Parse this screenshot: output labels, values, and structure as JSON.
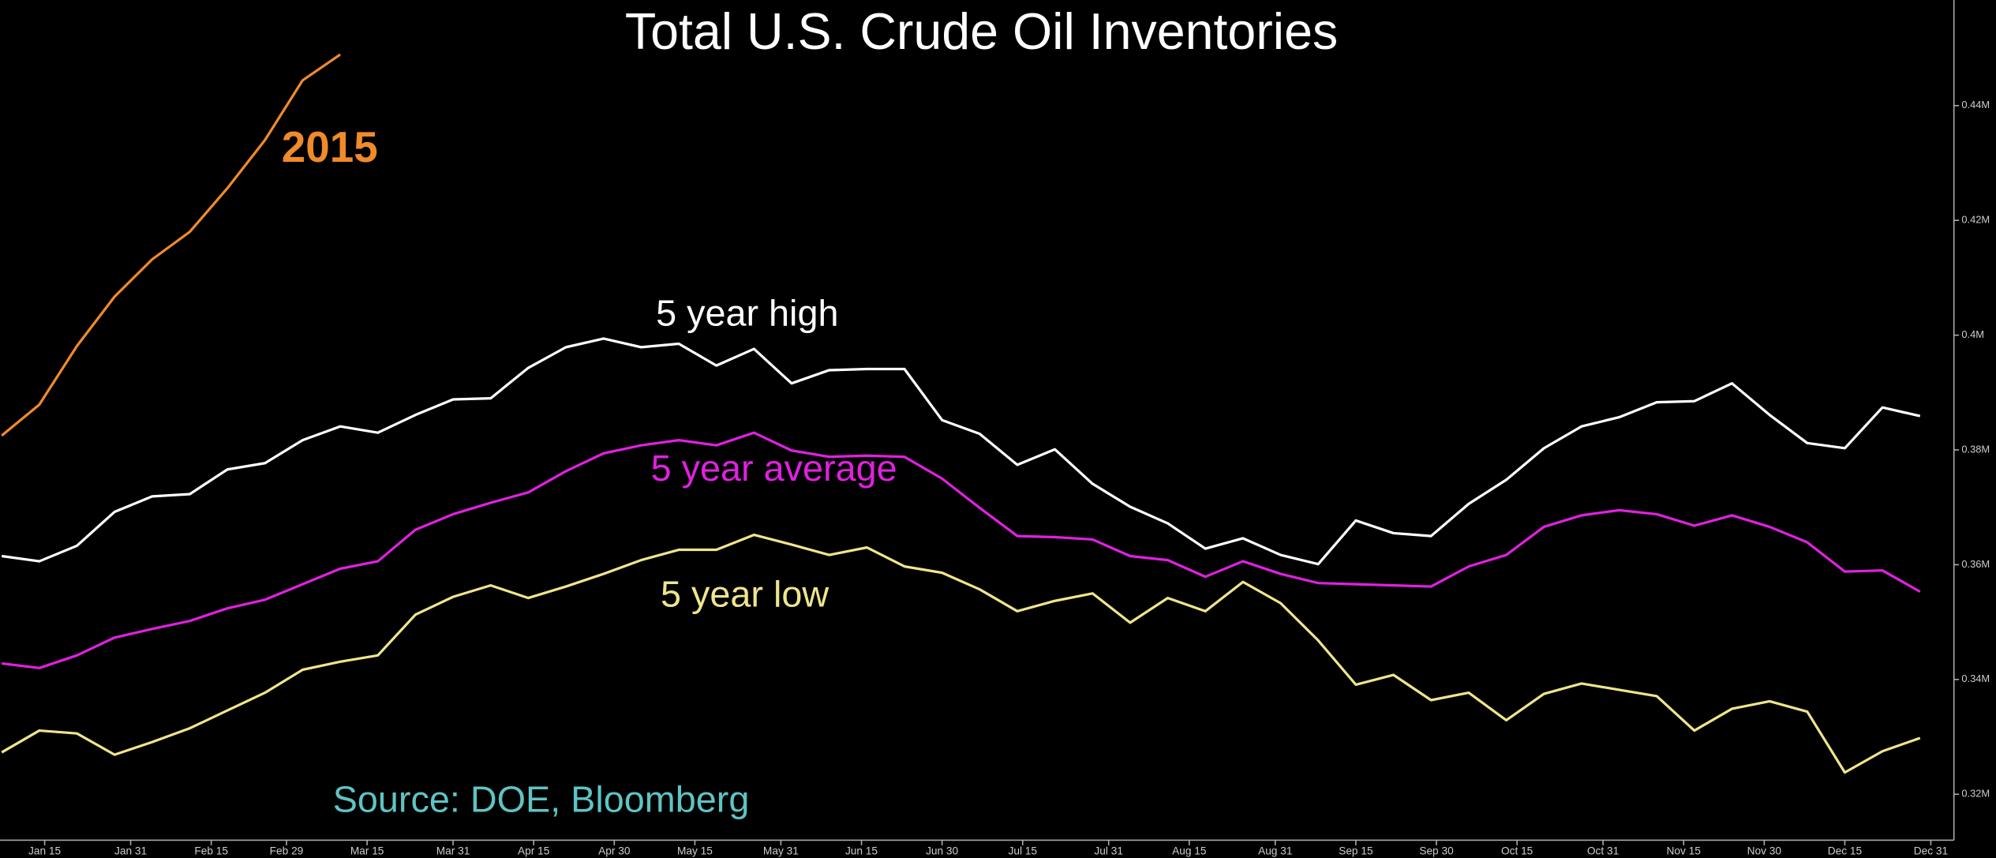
{
  "chart_data": {
    "type": "line",
    "title": "Total U.S. Crude Oil Inventories",
    "source": "Source: DOE, Bloomberg",
    "xlim": [
      6.7,
      370.3
    ],
    "xticks": [
      {
        "value": 15,
        "label": "Jan 15"
      },
      {
        "value": 31,
        "label": "Jan 31"
      },
      {
        "value": 46,
        "label": "Feb 15"
      },
      {
        "value": 60,
        "label": "Feb 29"
      },
      {
        "value": 75,
        "label": "Mar 15"
      },
      {
        "value": 91,
        "label": "Mar 31"
      },
      {
        "value": 106,
        "label": "Apr 15"
      },
      {
        "value": 121,
        "label": "Apr 30"
      },
      {
        "value": 136,
        "label": "May 15"
      },
      {
        "value": 152,
        "label": "May 31"
      },
      {
        "value": 167,
        "label": "Jun 15"
      },
      {
        "value": 182,
        "label": "Jun 30"
      },
      {
        "value": 197,
        "label": "Jul 15"
      },
      {
        "value": 213,
        "label": "Jul 31"
      },
      {
        "value": 228,
        "label": "Aug 15"
      },
      {
        "value": 244,
        "label": "Aug 31"
      },
      {
        "value": 259,
        "label": "Sep 15"
      },
      {
        "value": 274,
        "label": "Sep 30"
      },
      {
        "value": 289,
        "label": "Oct 15"
      },
      {
        "value": 305,
        "label": "Oct 31"
      },
      {
        "value": 320,
        "label": "Nov 15"
      },
      {
        "value": 335,
        "label": "Nov 30"
      },
      {
        "value": 350,
        "label": "Dec 15"
      },
      {
        "value": 366,
        "label": "Dec 31"
      }
    ],
    "ylim": [
      0.312,
      0.4584
    ],
    "yticks": [
      {
        "value": 0.32,
        "label": "0.32M"
      },
      {
        "value": 0.34,
        "label": "0.34M"
      },
      {
        "value": 0.36,
        "label": "0.36M"
      },
      {
        "value": 0.38,
        "label": "0.38M"
      },
      {
        "value": 0.4,
        "label": "0.4M"
      },
      {
        "value": 0.42,
        "label": "0.42M"
      },
      {
        "value": 0.44,
        "label": "0.44M"
      }
    ],
    "series": [
      {
        "name": "2015",
        "color": "#f08a2a",
        "x": [
          7,
          14,
          21,
          28,
          35,
          42,
          49,
          56,
          63,
          70
        ],
        "values": [
          0.3825,
          0.3879,
          0.3981,
          0.4067,
          0.4132,
          0.418,
          0.4256,
          0.434,
          0.4444,
          0.4489
        ]
      },
      {
        "name": "5 year high",
        "color": "#ffffff",
        "x": [
          7,
          14,
          21,
          28,
          35,
          42,
          49,
          56,
          63,
          70,
          77,
          84,
          91,
          98,
          105,
          112,
          119,
          126,
          133,
          140,
          147,
          154,
          161,
          168,
          175,
          182,
          189,
          196,
          203,
          210,
          217,
          224,
          231,
          238,
          245,
          252,
          259,
          266,
          273,
          280,
          287,
          294,
          301,
          308,
          315,
          322,
          329,
          336,
          343,
          350,
          357,
          364
        ],
        "values": [
          0.3615,
          0.3606,
          0.3633,
          0.3692,
          0.3719,
          0.3723,
          0.3766,
          0.3777,
          0.3817,
          0.3841,
          0.383,
          0.3861,
          0.3888,
          0.389,
          0.3943,
          0.3979,
          0.3994,
          0.3979,
          0.3985,
          0.3947,
          0.3976,
          0.3916,
          0.3939,
          0.3941,
          0.3941,
          0.3852,
          0.3828,
          0.3774,
          0.3801,
          0.3741,
          0.3701,
          0.3672,
          0.3628,
          0.3646,
          0.3617,
          0.3601,
          0.3677,
          0.3655,
          0.365,
          0.3706,
          0.3748,
          0.3803,
          0.3841,
          0.3857,
          0.3883,
          0.3885,
          0.3916,
          0.3861,
          0.3812,
          0.3803,
          0.3874,
          0.3859
        ]
      },
      {
        "name": "5 year average",
        "color": "#e020e0",
        "x": [
          7,
          14,
          21,
          28,
          35,
          42,
          49,
          56,
          63,
          70,
          77,
          84,
          91,
          98,
          105,
          112,
          119,
          126,
          133,
          140,
          147,
          154,
          161,
          168,
          175,
          182,
          189,
          196,
          203,
          210,
          217,
          224,
          231,
          238,
          245,
          252,
          259,
          266,
          273,
          280,
          287,
          294,
          301,
          308,
          315,
          322,
          329,
          336,
          343,
          350,
          357,
          364
        ],
        "values": [
          0.3428,
          0.342,
          0.3442,
          0.3473,
          0.3488,
          0.3502,
          0.3524,
          0.3539,
          0.3566,
          0.3593,
          0.3606,
          0.3661,
          0.3688,
          0.3708,
          0.3726,
          0.3763,
          0.3794,
          0.3808,
          0.3817,
          0.3808,
          0.383,
          0.3799,
          0.3788,
          0.379,
          0.3788,
          0.375,
          0.3699,
          0.365,
          0.3648,
          0.3644,
          0.3615,
          0.3608,
          0.3579,
          0.3606,
          0.3584,
          0.3568,
          0.3566,
          0.3564,
          0.3562,
          0.3597,
          0.3617,
          0.3666,
          0.3686,
          0.3695,
          0.3688,
          0.3668,
          0.3686,
          0.3666,
          0.3639,
          0.3588,
          0.359,
          0.3553
        ]
      },
      {
        "name": "5 year low",
        "color": "#efe58c",
        "x": [
          7,
          14,
          21,
          28,
          35,
          42,
          49,
          56,
          63,
          70,
          77,
          84,
          91,
          98,
          105,
          112,
          119,
          126,
          133,
          140,
          147,
          154,
          161,
          168,
          175,
          182,
          189,
          196,
          203,
          210,
          217,
          224,
          231,
          238,
          245,
          252,
          259,
          266,
          273,
          280,
          287,
          294,
          301,
          308,
          315,
          322,
          329,
          336,
          343,
          350,
          357,
          364
        ],
        "values": [
          0.3273,
          0.3311,
          0.3306,
          0.3269,
          0.3291,
          0.3315,
          0.3346,
          0.3377,
          0.3417,
          0.3431,
          0.3442,
          0.3513,
          0.3544,
          0.3564,
          0.3542,
          0.3562,
          0.3584,
          0.3608,
          0.3626,
          0.3626,
          0.3652,
          0.3635,
          0.3617,
          0.363,
          0.3597,
          0.3586,
          0.3557,
          0.3519,
          0.3537,
          0.355,
          0.3499,
          0.3542,
          0.3519,
          0.357,
          0.3533,
          0.3468,
          0.3391,
          0.3408,
          0.3364,
          0.3377,
          0.3329,
          0.3375,
          0.3393,
          0.3382,
          0.3371,
          0.3311,
          0.3349,
          0.3362,
          0.3344,
          0.3238,
          0.3275,
          0.3298
        ]
      }
    ]
  }
}
